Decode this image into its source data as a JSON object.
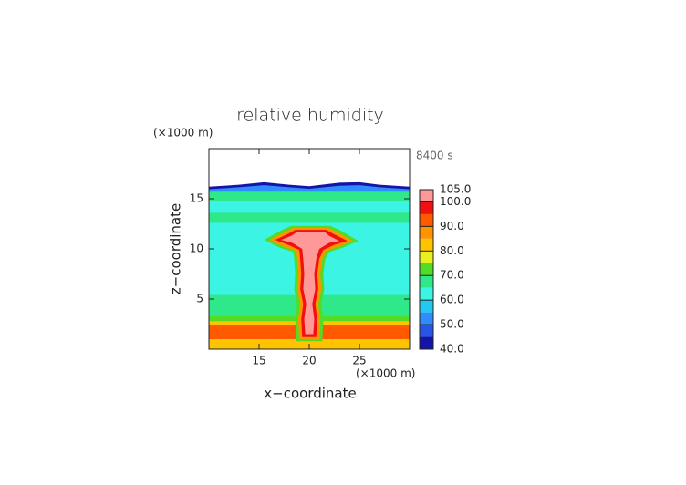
{
  "chart_data": {
    "type": "contour",
    "title": "relative humidity",
    "time_label": "8400 s",
    "x_label": "x−coordinate",
    "y_label": "z−coordinate",
    "x_unit": "(×1000 m)",
    "y_unit": "(×1000 m)",
    "xlim": [
      10,
      30
    ],
    "ylim": [
      0,
      20
    ],
    "xticks": [
      15,
      20,
      25
    ],
    "yticks": [
      5,
      10,
      15
    ],
    "colorbar": {
      "levels": [
        40,
        45,
        50,
        55,
        60,
        65,
        70,
        75,
        80,
        85,
        90,
        95,
        100,
        105
      ],
      "colors": [
        "#1414a8",
        "#2a54e6",
        "#2f8cff",
        "#22c8f0",
        "#3cf4e4",
        "#2ee88a",
        "#52dc28",
        "#e8f020",
        "#ffc400",
        "#ff9400",
        "#ff5a00",
        "#f01010",
        "#ff9898"
      ],
      "ticks": [
        {
          "value": 40,
          "label": "40.0"
        },
        {
          "value": 50,
          "label": "50.0"
        },
        {
          "value": 60,
          "label": "60.0"
        },
        {
          "value": 70,
          "label": "70.0"
        },
        {
          "value": 80,
          "label": "80.0"
        },
        {
          "value": 90,
          "label": "90.0"
        },
        {
          "value": 100,
          "label": "100.0"
        },
        {
          "value": 105,
          "label": "105.0"
        }
      ]
    },
    "regions": [
      {
        "level": 42,
        "x": [
          10,
          30,
          30,
          27,
          25,
          23,
          20,
          18,
          15.5,
          13,
          10
        ],
        "y": [
          0,
          0,
          16.2,
          16.4,
          16.65,
          16.6,
          16.25,
          16.4,
          16.65,
          16.4,
          16.2
        ]
      },
      {
        "level": 52,
        "x": [
          10,
          30,
          30,
          27,
          25,
          23,
          20,
          18,
          15.5,
          13,
          10
        ],
        "y": [
          0,
          0,
          15.95,
          16.15,
          16.35,
          16.3,
          16.0,
          16.15,
          16.35,
          16.15,
          15.95
        ]
      },
      {
        "level": 67,
        "x": [
          10,
          30,
          30,
          10
        ],
        "y": [
          0,
          0,
          15.7,
          15.7
        ]
      },
      {
        "level": 62,
        "x": [
          10,
          30,
          30,
          10
        ],
        "y": [
          0,
          0,
          14.8,
          14.8
        ]
      },
      {
        "level": 66,
        "x": [
          10,
          30,
          30,
          10
        ],
        "y": [
          12.6,
          12.6,
          13.6,
          13.6
        ]
      },
      {
        "level": 67,
        "x": [
          10,
          30,
          30,
          10
        ],
        "y": [
          0,
          0,
          5.4,
          5.4
        ]
      },
      {
        "level": 74,
        "x": [
          10,
          30,
          30,
          10
        ],
        "y": [
          0,
          0,
          3.3,
          3.3
        ]
      },
      {
        "level": 84,
        "x": [
          10,
          30,
          30,
          10
        ],
        "y": [
          0,
          0,
          2.8,
          2.8
        ]
      },
      {
        "level": 93,
        "x": [
          10,
          30,
          30,
          10
        ],
        "y": [
          1,
          1,
          2.4,
          2.4
        ]
      },
      {
        "level": 73,
        "x": [
          18.7,
          21.3,
          21.4,
          21.2,
          21.5,
          21.4,
          21.6,
          22,
          23.3,
          24.9,
          23,
          22.1,
          18.2,
          17.3,
          15.5,
          17.1,
          18.4,
          18.5,
          18.6,
          18.5,
          18.8,
          18.6
        ],
        "y": [
          0.8,
          0.8,
          3,
          4.5,
          6,
          7.5,
          9,
          9.7,
          10.1,
          10.8,
          11.9,
          12.3,
          12.3,
          11.9,
          10.9,
          10.1,
          9.7,
          9,
          7.5,
          6,
          4.5,
          3
        ]
      },
      {
        "level": 85,
        "x": [
          19,
          21,
          21.1,
          20.9,
          21.2,
          21.1,
          21.3,
          21.7,
          22.9,
          24.4,
          22.7,
          21.9,
          18.4,
          17.6,
          16,
          17.5,
          18.7,
          18.8,
          18.9,
          18.8,
          19.1,
          18.9
        ],
        "y": [
          1,
          1,
          3,
          4.5,
          6,
          7.5,
          9,
          9.8,
          10.2,
          10.8,
          11.7,
          12.1,
          12.1,
          11.7,
          10.9,
          10.2,
          9.8,
          9,
          7.5,
          6,
          4.5,
          3
        ]
      },
      {
        "level": 96,
        "x": [
          19.3,
          20.7,
          20.8,
          20.6,
          20.9,
          20.8,
          21,
          21.4,
          22.5,
          23.8,
          22.4,
          21.7,
          18.6,
          17.9,
          16.6,
          17.9,
          19,
          19.1,
          19.2,
          19.1,
          19.4,
          19.2
        ],
        "y": [
          1.2,
          1.2,
          3,
          4.5,
          6,
          7.5,
          9,
          9.9,
          10.4,
          10.8,
          11.5,
          11.9,
          11.9,
          11.5,
          10.9,
          10.4,
          9.9,
          9,
          7.5,
          6,
          4.5,
          3
        ]
      },
      {
        "level": 102,
        "x": [
          19.6,
          20.4,
          20.5,
          20.3,
          20.6,
          20.5,
          20.7,
          21,
          22,
          23,
          22,
          21.5,
          18.8,
          18.2,
          17.2,
          18.3,
          19.3,
          19.4,
          19.5,
          19.4,
          19.7,
          19.5
        ],
        "y": [
          1.5,
          1.5,
          3,
          4.5,
          6,
          7.5,
          9,
          10,
          10.6,
          10.8,
          11.3,
          11.7,
          11.7,
          11.3,
          10.9,
          10.6,
          10,
          9,
          7.5,
          6,
          4.5,
          3
        ]
      }
    ]
  }
}
